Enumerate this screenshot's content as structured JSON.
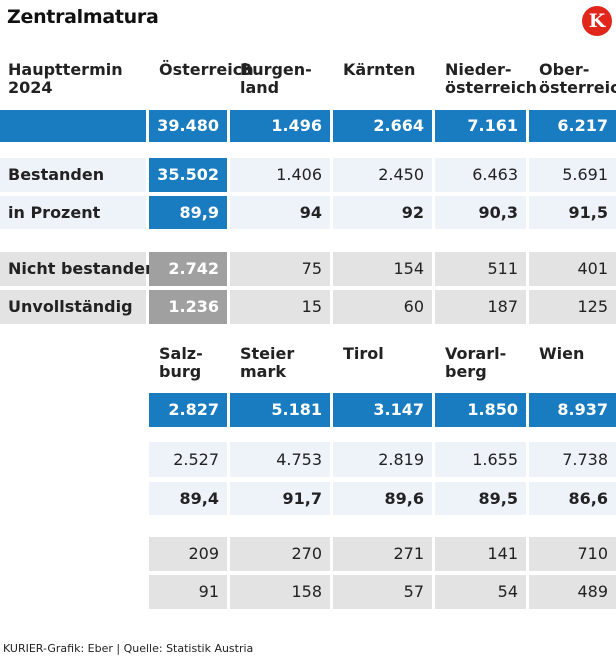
{
  "title": "Zentralmatura",
  "logo_letter": "K",
  "footer": "KURIER-Grafik: Eber | Quelle: Statistik Austria",
  "colors": {
    "header_blue": "#1a7cc0",
    "pale_row": "#eef3fa",
    "gray_row": "#e3e3e3",
    "dark_gray": "#a0a0a0",
    "logo_red": "#e1261c"
  },
  "chart_data": {
    "type": "table",
    "title": "Zentralmatura",
    "corner_header": [
      "Haupttermin",
      "2024"
    ],
    "row_labels": [
      "",
      "Bestanden",
      "in Prozent",
      "Nicht bestanden",
      "Unvollständig"
    ],
    "top_table": {
      "columns": [
        {
          "label": [
            "Österreich"
          ],
          "values": [
            "39.480",
            "35.502",
            "89,9",
            "2.742",
            "1.236"
          ]
        },
        {
          "label": [
            "Burgen-",
            "land"
          ],
          "values": [
            "1.496",
            "1.406",
            "94",
            "75",
            "15"
          ]
        },
        {
          "label": [
            "Kärnten"
          ],
          "values": [
            "2.664",
            "2.450",
            "92",
            "154",
            "60"
          ]
        },
        {
          "label": [
            "Nieder-",
            "österreich"
          ],
          "values": [
            "7.161",
            "6.463",
            "90,3",
            "511",
            "187"
          ]
        },
        {
          "label": [
            "Ober-",
            "österreich"
          ],
          "values": [
            "6.217",
            "5.691",
            "91,5",
            "401",
            "125"
          ]
        }
      ]
    },
    "bottom_table": {
      "columns": [
        {
          "label": [
            "Salz-",
            "burg"
          ],
          "values": [
            "2.827",
            "2.527",
            "89,4",
            "209",
            "91"
          ]
        },
        {
          "label": [
            "Steier",
            "mark"
          ],
          "values": [
            "5.181",
            "4.753",
            "91,7",
            "270",
            "158"
          ]
        },
        {
          "label": [
            "Tirol"
          ],
          "values": [
            "3.147",
            "2.819",
            "89,6",
            "271",
            "57"
          ]
        },
        {
          "label": [
            "Vorarl-",
            "berg"
          ],
          "values": [
            "1.850",
            "1.655",
            "89,5",
            "141",
            "54"
          ]
        },
        {
          "label": [
            "Wien"
          ],
          "values": [
            "8.937",
            "7.738",
            "86,6",
            "710",
            "489"
          ]
        }
      ]
    }
  }
}
